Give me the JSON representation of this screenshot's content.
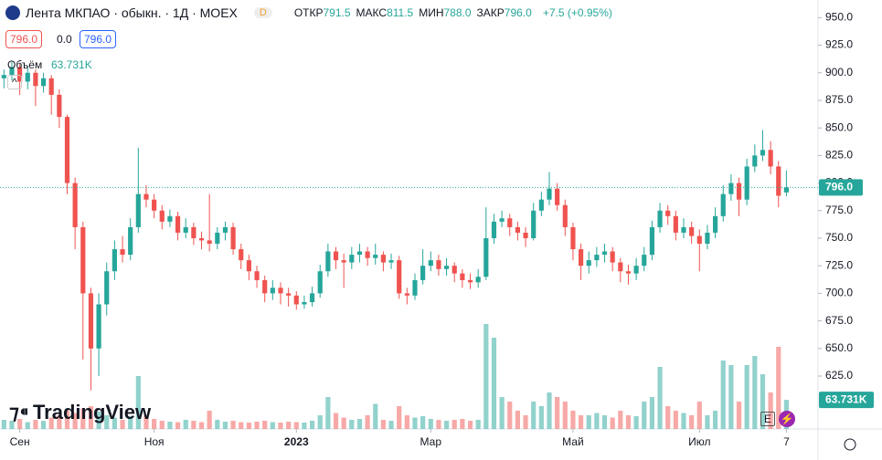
{
  "header": {
    "symbol": "Лента МКПАО · обыкн. · 1Д · MOEX",
    "badge": "D",
    "ohlc": [
      {
        "label": "ОТКР",
        "value": "791.5"
      },
      {
        "label": "МАКС",
        "value": "811.5"
      },
      {
        "label": "МИН",
        "value": "788.0"
      },
      {
        "label": "ЗАКР",
        "value": "796.0"
      }
    ],
    "change": "+7.5 (+0.95%)",
    "sell": "796.0",
    "spread": "0.0",
    "buy": "796.0",
    "volume_title": "Объём",
    "volume_value": "63.731K",
    "logo": "TradingView",
    "events_icon": "E"
  },
  "chart_data": {
    "type": "candlestick",
    "last_price_label": "796.0",
    "last_volume_label": "63.731K",
    "up_color": "#26a69a",
    "down_color": "#ef5350",
    "grid": false,
    "xlim": [
      -0.5,
      103
    ],
    "xticks": [
      {
        "value": 2,
        "label": "Сен"
      },
      {
        "value": 19,
        "label": "Ноя"
      },
      {
        "value": 37,
        "label": "2023"
      },
      {
        "value": 54,
        "label": "Мар"
      },
      {
        "value": 72,
        "label": "Май"
      },
      {
        "value": 88,
        "label": "Июл"
      },
      {
        "value": 99,
        "label": "7"
      }
    ],
    "ylim": [
      577,
      966
    ],
    "yticks": [
      {
        "value": 625,
        "label": "625.0"
      },
      {
        "value": 650,
        "label": "650.0"
      },
      {
        "value": 675,
        "label": "675.0"
      },
      {
        "value": 700,
        "label": "700.0"
      },
      {
        "value": 725,
        "label": "725.0"
      },
      {
        "value": 750,
        "label": "750.0"
      },
      {
        "value": 775,
        "label": "775.0"
      },
      {
        "value": 800,
        "label": "800.0"
      },
      {
        "value": 825,
        "label": "825.0"
      },
      {
        "value": 850,
        "label": "850.0"
      },
      {
        "value": 875,
        "label": "875.0"
      },
      {
        "value": 900,
        "label": "900.0"
      },
      {
        "value": 925,
        "label": "925.0"
      },
      {
        "value": 950,
        "label": "950.0"
      }
    ],
    "open": [
      895,
      898,
      905,
      892,
      900,
      888,
      895,
      880,
      860,
      800,
      760,
      700,
      650,
      690,
      720,
      740,
      735,
      760,
      790,
      785,
      775,
      765,
      770,
      755,
      760,
      750,
      748,
      745,
      755,
      760,
      740,
      730,
      720,
      712,
      700,
      705,
      700,
      698,
      690,
      692,
      700,
      720,
      738,
      730,
      728,
      735,
      738,
      732,
      735,
      728,
      730,
      700,
      698,
      712,
      725,
      730,
      722,
      725,
      718,
      712,
      710,
      715,
      750,
      765,
      768,
      760,
      755,
      750,
      775,
      785,
      795,
      780,
      760,
      740,
      725,
      730,
      735,
      738,
      728,
      720,
      718,
      725,
      735,
      760,
      775,
      770,
      755,
      760,
      752,
      745,
      755,
      770,
      790,
      800,
      785,
      815,
      825,
      830,
      815,
      791.5
    ],
    "high": [
      903,
      910,
      908,
      905,
      903,
      900,
      898,
      885,
      862,
      805,
      765,
      705,
      700,
      728,
      748,
      752,
      768,
      832,
      798,
      790,
      780,
      776,
      774,
      768,
      764,
      756,
      790,
      760,
      765,
      764,
      745,
      735,
      725,
      716,
      712,
      710,
      705,
      702,
      698,
      706,
      726,
      745,
      742,
      736,
      742,
      745,
      742,
      745,
      738,
      736,
      734,
      705,
      718,
      740,
      738,
      735,
      732,
      728,
      722,
      718,
      722,
      778,
      772,
      775,
      772,
      765,
      760,
      782,
      792,
      810,
      800,
      785,
      764,
      745,
      738,
      742,
      745,
      742,
      732,
      726,
      732,
      742,
      766,
      782,
      780,
      775,
      768,
      765,
      758,
      762,
      778,
      798,
      808,
      805,
      822,
      835,
      848,
      838,
      820,
      811.5
    ],
    "low": [
      886,
      893,
      880,
      885,
      870,
      882,
      862,
      850,
      790,
      740,
      640,
      612,
      625,
      680,
      712,
      728,
      730,
      755,
      778,
      768,
      758,
      760,
      748,
      750,
      744,
      740,
      738,
      740,
      748,
      735,
      722,
      712,
      705,
      692,
      694,
      690,
      688,
      685,
      686,
      688,
      696,
      715,
      722,
      705,
      722,
      728,
      725,
      726,
      720,
      722,
      695,
      690,
      694,
      708,
      720,
      716,
      716,
      710,
      705,
      704,
      705,
      712,
      745,
      760,
      752,
      748,
      742,
      748,
      770,
      780,
      775,
      752,
      730,
      712,
      718,
      724,
      728,
      720,
      710,
      708,
      712,
      720,
      730,
      755,
      762,
      748,
      750,
      745,
      720,
      740,
      750,
      765,
      784,
      770,
      780,
      810,
      820,
      808,
      778,
      788
    ],
    "close": [
      898,
      905,
      892,
      900,
      888,
      895,
      880,
      860,
      800,
      760,
      700,
      650,
      690,
      720,
      740,
      735,
      760,
      790,
      785,
      775,
      765,
      770,
      755,
      760,
      750,
      748,
      745,
      755,
      760,
      740,
      730,
      720,
      712,
      700,
      705,
      700,
      698,
      690,
      692,
      700,
      720,
      738,
      730,
      728,
      735,
      738,
      732,
      735,
      728,
      730,
      700,
      698,
      712,
      725,
      730,
      722,
      725,
      718,
      712,
      710,
      715,
      750,
      765,
      768,
      760,
      755,
      750,
      775,
      785,
      795,
      780,
      760,
      740,
      725,
      730,
      735,
      738,
      728,
      720,
      718,
      725,
      735,
      760,
      775,
      770,
      755,
      760,
      752,
      745,
      755,
      770,
      790,
      800,
      785,
      815,
      825,
      830,
      815,
      788.5,
      796
    ],
    "volume": [
      20000,
      18000,
      22000,
      15000,
      20000,
      18000,
      25000,
      30000,
      40000,
      35000,
      45000,
      50000,
      38000,
      30000,
      25000,
      20000,
      28000,
      116000,
      30000,
      22000,
      18000,
      16000,
      15000,
      20000,
      18000,
      15000,
      40000,
      20000,
      16000,
      18000,
      15000,
      14000,
      16000,
      18000,
      15000,
      14000,
      16000,
      15000,
      14000,
      18000,
      30000,
      70000,
      35000,
      25000,
      20000,
      22000,
      30000,
      55000,
      20000,
      18000,
      50000,
      30000,
      25000,
      28000,
      22000,
      20000,
      18000,
      20000,
      22000,
      18000,
      20000,
      230000,
      200000,
      70000,
      60000,
      40000,
      30000,
      60000,
      50000,
      80000,
      70000,
      60000,
      40000,
      30000,
      30000,
      35000,
      30000,
      25000,
      40000,
      30000,
      28000,
      60000,
      70000,
      136000,
      50000,
      40000,
      35000,
      30000,
      60000,
      30000,
      40000,
      150000,
      140000,
      60000,
      140000,
      160000,
      120000,
      80000,
      180000,
      63731
    ]
  }
}
